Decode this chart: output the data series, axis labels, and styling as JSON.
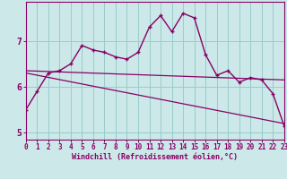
{
  "xlabel": "Windchill (Refroidissement éolien,°C)",
  "bg_color": "#cce8e8",
  "grid_color": "#99cccc",
  "line_color": "#880066",
  "x_hours": [
    0,
    1,
    2,
    3,
    4,
    5,
    6,
    7,
    8,
    9,
    10,
    11,
    12,
    13,
    14,
    15,
    16,
    17,
    18,
    19,
    20,
    21,
    22,
    23
  ],
  "windchill": [
    5.5,
    5.9,
    6.3,
    6.35,
    6.5,
    6.9,
    6.8,
    6.75,
    6.65,
    6.6,
    6.75,
    7.3,
    7.55,
    7.2,
    7.6,
    7.5,
    6.7,
    6.25,
    6.35,
    6.1,
    6.2,
    6.15,
    5.85,
    5.15
  ],
  "reg1_y0": 6.35,
  "reg1_y1": 6.15,
  "reg2_y0": 6.3,
  "reg2_y1": 5.2,
  "ylim": [
    4.85,
    7.85
  ],
  "yticks": [
    5,
    6,
    7
  ],
  "xlim": [
    0,
    23
  ]
}
